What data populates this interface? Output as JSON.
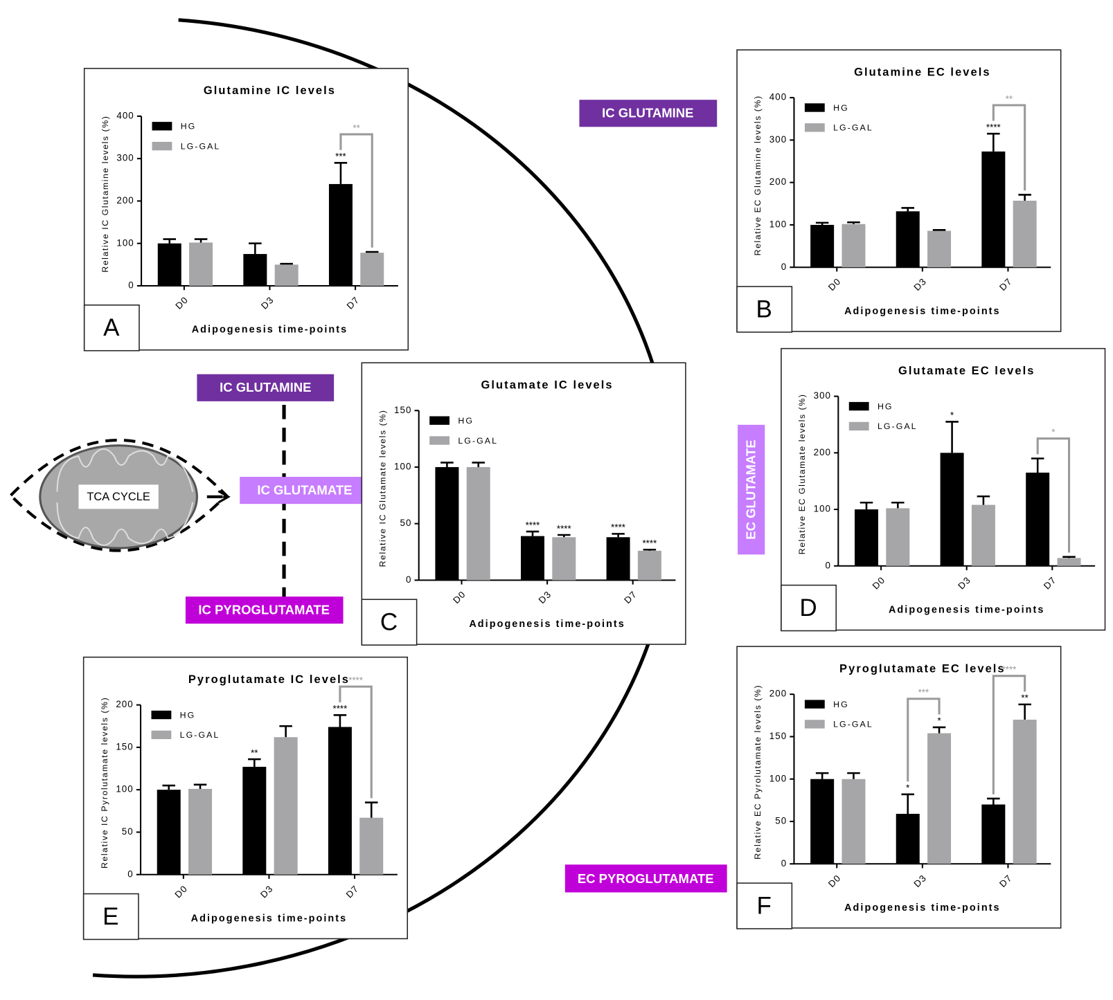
{
  "chart_data": [
    {
      "type": "bar",
      "panel": "A",
      "title": "Glutamine IC levels",
      "xlabel": "Adipogenesis time-points",
      "ylabel": "Relative IC Glutamine levels (%)",
      "categories": [
        "D0",
        "D3",
        "D7"
      ],
      "ylim": [
        0,
        400
      ],
      "yticks": [
        0,
        100,
        200,
        300,
        400
      ],
      "series": [
        {
          "name": "HG",
          "color": "#000000",
          "values": [
            100,
            75,
            240
          ],
          "errors": [
            10,
            25,
            50
          ],
          "stars": [
            null,
            null,
            "***"
          ]
        },
        {
          "name": "LG-GAL",
          "color": "#a6a6a8",
          "values": [
            102,
            50,
            78
          ],
          "errors": [
            8,
            2,
            2
          ],
          "stars": [
            null,
            null,
            null
          ]
        }
      ],
      "brackets": [
        {
          "category": "D7",
          "label": "**"
        }
      ]
    },
    {
      "type": "bar",
      "panel": "B",
      "title": "Glutamine EC levels",
      "xlabel": "Adipogenesis time-points",
      "ylabel": "Relative EC Glutamine levels (%)",
      "categories": [
        "D0",
        "D3",
        "D7"
      ],
      "ylim": [
        0,
        400
      ],
      "yticks": [
        0,
        100,
        200,
        300,
        400
      ],
      "series": [
        {
          "name": "HG",
          "color": "#000000",
          "values": [
            100,
            132,
            273
          ],
          "errors": [
            5,
            8,
            42
          ],
          "stars": [
            null,
            null,
            "****"
          ]
        },
        {
          "name": "LG-GAL",
          "color": "#a6a6a8",
          "values": [
            102,
            86,
            157
          ],
          "errors": [
            4,
            2,
            14
          ],
          "stars": [
            null,
            null,
            null
          ]
        }
      ],
      "brackets": [
        {
          "category": "D7",
          "label": "**"
        }
      ]
    },
    {
      "type": "bar",
      "panel": "C",
      "title": "Glutamate IC levels",
      "xlabel": "Adipogenesis time-points",
      "ylabel": "Relative IC Glutamate levels (%)",
      "categories": [
        "D0",
        "D3",
        "D7"
      ],
      "ylim": [
        0,
        150
      ],
      "yticks": [
        0,
        50,
        100,
        150
      ],
      "series": [
        {
          "name": "HG",
          "color": "#000000",
          "values": [
            100,
            39,
            38
          ],
          "errors": [
            4,
            4,
            3
          ],
          "stars": [
            null,
            "****",
            "****"
          ]
        },
        {
          "name": "LG-GAL",
          "color": "#a6a6a8",
          "values": [
            100,
            38,
            26
          ],
          "errors": [
            4,
            2,
            1
          ],
          "stars": [
            null,
            "****",
            "****"
          ]
        }
      ],
      "brackets": []
    },
    {
      "type": "bar",
      "panel": "D",
      "title": "Glutamate EC levels",
      "xlabel": "Adipogenesis time-points",
      "ylabel": "Relative EC Glutamate levels (%)",
      "categories": [
        "D0",
        "D3",
        "D7"
      ],
      "ylim": [
        0,
        300
      ],
      "yticks": [
        0,
        100,
        200,
        300
      ],
      "series": [
        {
          "name": "HG",
          "color": "#000000",
          "values": [
            100,
            200,
            165
          ],
          "errors": [
            12,
            55,
            25
          ],
          "stars": [
            null,
            "*",
            null
          ]
        },
        {
          "name": "LG-GAL",
          "color": "#a6a6a8",
          "values": [
            102,
            108,
            14
          ],
          "errors": [
            10,
            15,
            2
          ],
          "stars": [
            null,
            null,
            null
          ]
        }
      ],
      "brackets": [
        {
          "category": "D7",
          "label": "*"
        }
      ]
    },
    {
      "type": "bar",
      "panel": "E",
      "title": "Pyroglutamate IC levels",
      "xlabel": "Adipogenesis time-points",
      "ylabel": "Relative IC Pyrolutamate levels (%)",
      "categories": [
        "D0",
        "D3",
        "D7"
      ],
      "ylim": [
        0,
        200
      ],
      "yticks": [
        0,
        50,
        100,
        150,
        200
      ],
      "series": [
        {
          "name": "HG",
          "color": "#000000",
          "values": [
            100,
            127,
            174
          ],
          "errors": [
            5,
            9,
            14
          ],
          "stars": [
            null,
            "**",
            "****"
          ]
        },
        {
          "name": "LG-GAL",
          "color": "#a6a6a8",
          "values": [
            101,
            162,
            67
          ],
          "errors": [
            5,
            13,
            18
          ],
          "stars": [
            null,
            null,
            null
          ]
        }
      ],
      "brackets": [
        {
          "category": "D7",
          "label": "****"
        }
      ]
    },
    {
      "type": "bar",
      "panel": "F",
      "title": "Pyroglutamate EC levels",
      "xlabel": "Adipogenesis time-points",
      "ylabel": "Relative EC Pyrolutamate levels (%)",
      "categories": [
        "D0",
        "D3",
        "D7"
      ],
      "ylim": [
        0,
        200
      ],
      "yticks": [
        0,
        50,
        100,
        150,
        200
      ],
      "series": [
        {
          "name": "HG",
          "color": "#000000",
          "values": [
            100,
            59,
            70
          ],
          "errors": [
            7,
            23,
            7
          ],
          "stars": [
            null,
            "*",
            null
          ]
        },
        {
          "name": "LG-GAL",
          "color": "#a6a6a8",
          "values": [
            100,
            154,
            170
          ],
          "errors": [
            7,
            7,
            18
          ],
          "stars": [
            null,
            "*",
            "**"
          ]
        }
      ],
      "brackets": [
        {
          "category": "D3",
          "label": "***"
        },
        {
          "category": "D7",
          "label": "****"
        }
      ]
    }
  ],
  "diagram": {
    "labels": [
      "IC GLUTAMINE",
      "IC GLUTAMINE",
      "IC GLUTAMATE",
      "IC PYROGLUTAMATE",
      "EC GLUTAMATE",
      "EC PYROGLUTAMATE"
    ],
    "mitochondrion": "TCA CYCLE"
  }
}
